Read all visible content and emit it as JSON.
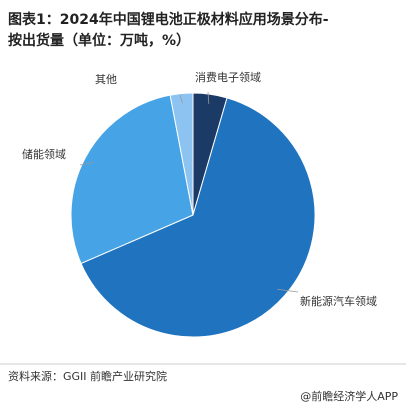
{
  "chart_data": {
    "type": "pie",
    "title": "图表1：2024年中国锂电池正极材料应用场景分布-",
    "subtitle": "按出货量（单位：万吨，%）",
    "categories": [
      "消费电子领域",
      "新能源汽车领域",
      "储能领域",
      "其他"
    ],
    "values": [
      4.5,
      64,
      28.5,
      3
    ],
    "colors": [
      "#1b3a66",
      "#1f73bf",
      "#45a3e6",
      "#8cc3f0"
    ],
    "source": "资料来源：GGII   前瞻产业研究院",
    "watermark": "@前瞻经济学人APP"
  }
}
